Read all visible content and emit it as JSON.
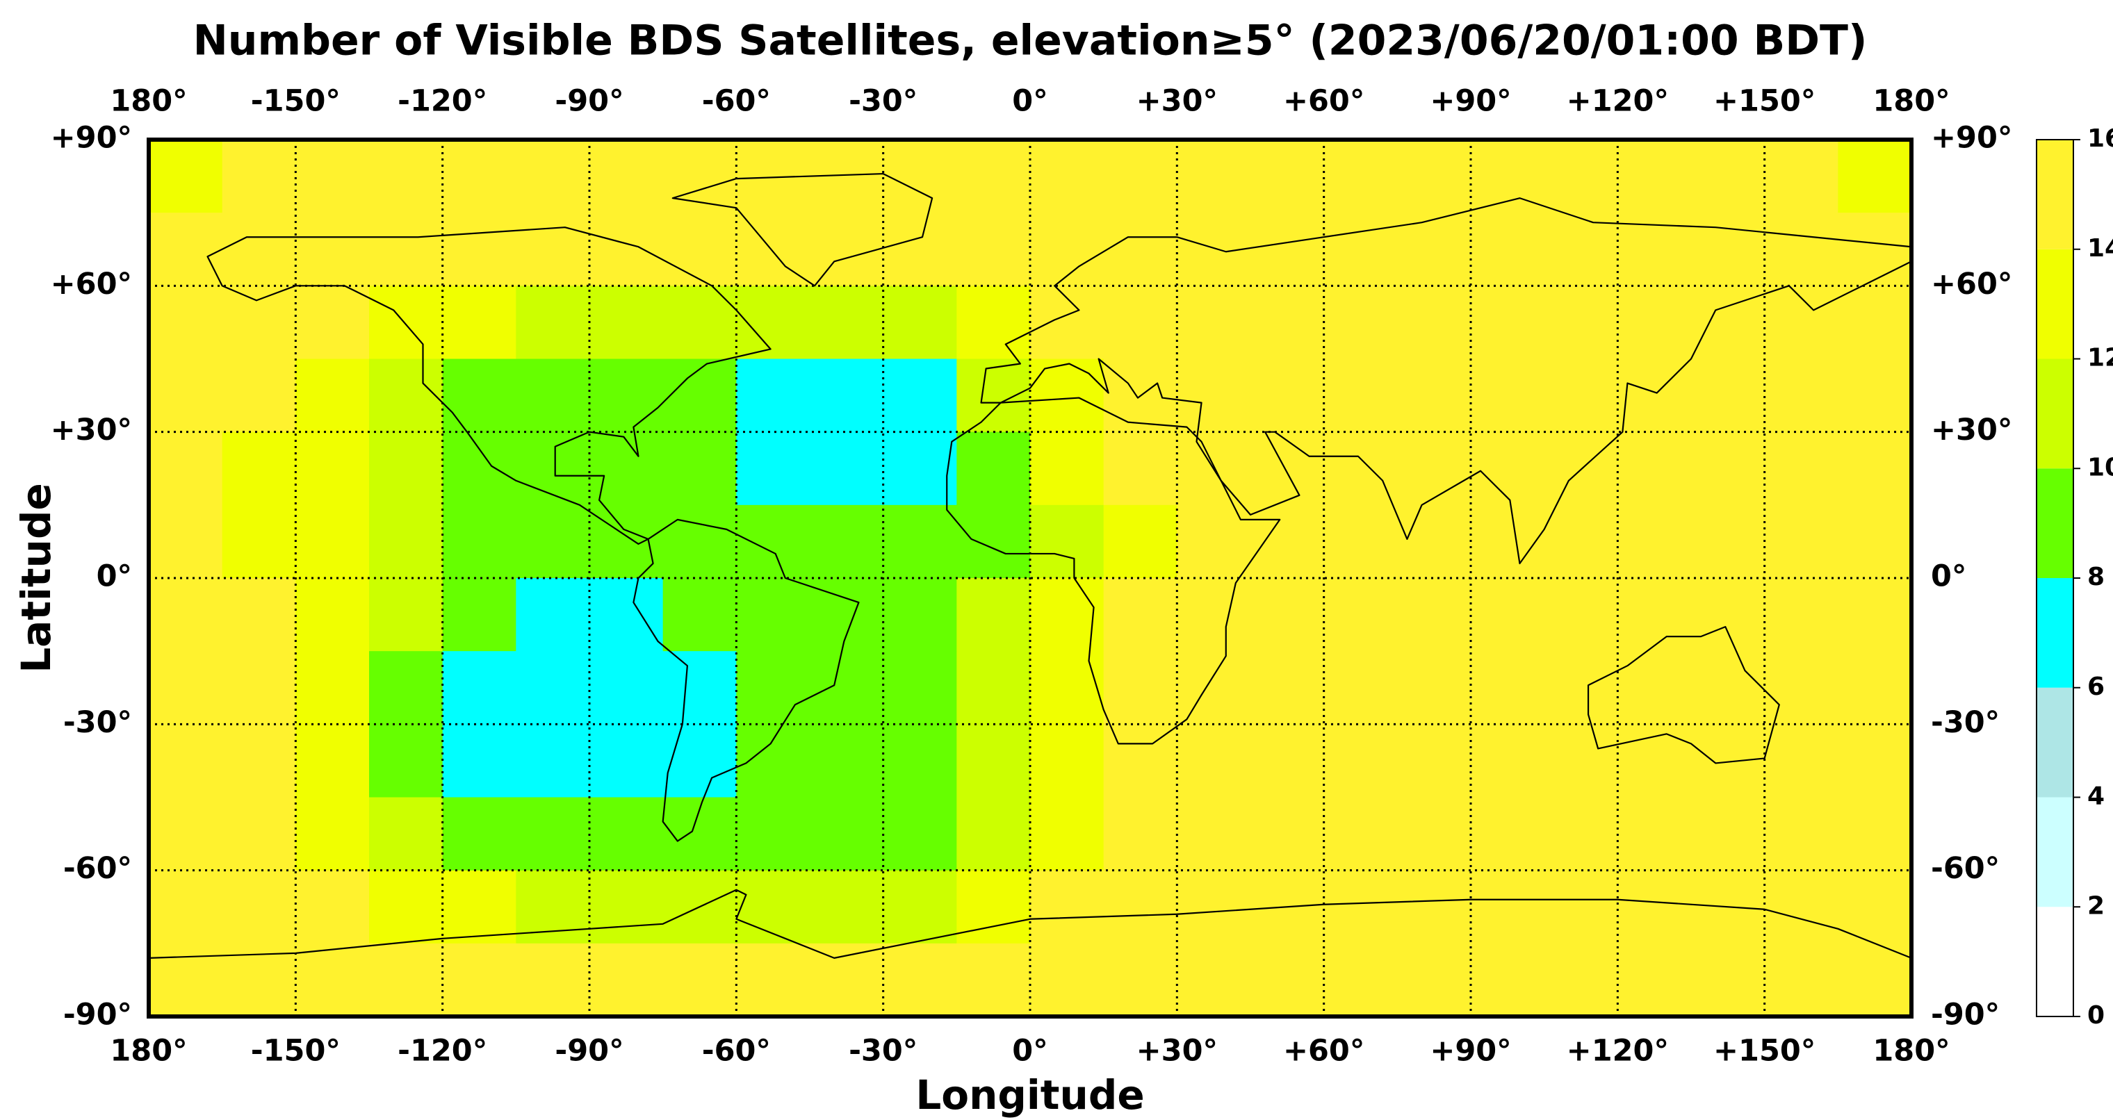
{
  "chart_data": {
    "type": "gridmap",
    "title": "Number of Visible BDS Satellites, elevation≥5° (2023/06/20/01:00 BDT)",
    "x_label": "Longitude",
    "y_label": "Latitude",
    "xlim": [
      -180,
      180
    ],
    "ylim": [
      -90,
      90
    ],
    "xticks": [
      {
        "value": -180,
        "label": "180°"
      },
      {
        "value": -150,
        "label": "-150°"
      },
      {
        "value": -120,
        "label": "-120°"
      },
      {
        "value": -90,
        "label": "-90°"
      },
      {
        "value": -60,
        "label": "-60°"
      },
      {
        "value": -30,
        "label": "-30°"
      },
      {
        "value": 0,
        "label": "0°"
      },
      {
        "value": 30,
        "label": "+30°"
      },
      {
        "value": 60,
        "label": "+60°"
      },
      {
        "value": 90,
        "label": "+90°"
      },
      {
        "value": 120,
        "label": "+120°"
      },
      {
        "value": 150,
        "label": "+150°"
      },
      {
        "value": 180,
        "label": "180°"
      }
    ],
    "yticks": [
      {
        "value": 90,
        "label": "+90°"
      },
      {
        "value": 60,
        "label": "+60°"
      },
      {
        "value": 30,
        "label": "+30°"
      },
      {
        "value": 0,
        "label": "0°"
      },
      {
        "value": -30,
        "label": "-30°"
      },
      {
        "value": -60,
        "label": "-60°"
      },
      {
        "value": -90,
        "label": "-90°"
      }
    ],
    "grid": true,
    "levels": [
      0,
      2,
      4,
      6,
      8,
      10,
      12,
      14,
      16
    ],
    "colors": [
      "#ffffff",
      "#ccffff",
      "#aee6e6",
      "#00ffff",
      "#66ff00",
      "#ccff00",
      "#f0ff00",
      "#fff22e"
    ],
    "z": [
      [
        13,
        15,
        15,
        15,
        15,
        15,
        15,
        15,
        15,
        15,
        15,
        15,
        15,
        15,
        15,
        15,
        15,
        15,
        15,
        15,
        15,
        15,
        15,
        13
      ],
      [
        15,
        15,
        15,
        15,
        15,
        15,
        15,
        15,
        15,
        15,
        15,
        15,
        15,
        15,
        15,
        15,
        15,
        15,
        15,
        15,
        15,
        15,
        15,
        15
      ],
      [
        15,
        15,
        15,
        13,
        13,
        11,
        11,
        11,
        11,
        11,
        11,
        13,
        15,
        15,
        15,
        15,
        15,
        15,
        15,
        15,
        15,
        15,
        15,
        15
      ],
      [
        15,
        15,
        13,
        11,
        9,
        9,
        9,
        9,
        7,
        7,
        7,
        11,
        13,
        15,
        15,
        15,
        15,
        15,
        15,
        15,
        15,
        15,
        15,
        15
      ],
      [
        15,
        13,
        13,
        11,
        9,
        9,
        9,
        9,
        7,
        7,
        7,
        9,
        13,
        15,
        15,
        15,
        15,
        15,
        15,
        15,
        15,
        15,
        15,
        15
      ],
      [
        15,
        13,
        13,
        11,
        9,
        9,
        9,
        9,
        9,
        9,
        9,
        9,
        11,
        13,
        15,
        15,
        15,
        15,
        15,
        15,
        15,
        15,
        15,
        15
      ],
      [
        15,
        15,
        13,
        11,
        9,
        7,
        7,
        9,
        9,
        9,
        9,
        11,
        13,
        15,
        15,
        15,
        15,
        15,
        15,
        15,
        15,
        15,
        15,
        15
      ],
      [
        15,
        15,
        13,
        9,
        7,
        7,
        7,
        7,
        9,
        9,
        9,
        11,
        13,
        15,
        15,
        15,
        15,
        15,
        15,
        15,
        15,
        15,
        15,
        15
      ],
      [
        15,
        15,
        13,
        9,
        7,
        7,
        7,
        7,
        9,
        9,
        9,
        11,
        13,
        15,
        15,
        15,
        15,
        15,
        15,
        15,
        15,
        15,
        15,
        15
      ],
      [
        15,
        15,
        13,
        11,
        9,
        9,
        9,
        9,
        9,
        9,
        9,
        11,
        13,
        15,
        15,
        15,
        15,
        15,
        15,
        15,
        15,
        15,
        15,
        15
      ],
      [
        15,
        15,
        15,
        13,
        13,
        11,
        11,
        11,
        11,
        11,
        11,
        13,
        15,
        15,
        15,
        15,
        15,
        15,
        15,
        15,
        15,
        15,
        15,
        15
      ],
      [
        15,
        15,
        15,
        15,
        15,
        15,
        15,
        15,
        15,
        15,
        15,
        15,
        15,
        15,
        15,
        15,
        15,
        15,
        15,
        15,
        15,
        15,
        15,
        15
      ]
    ]
  }
}
